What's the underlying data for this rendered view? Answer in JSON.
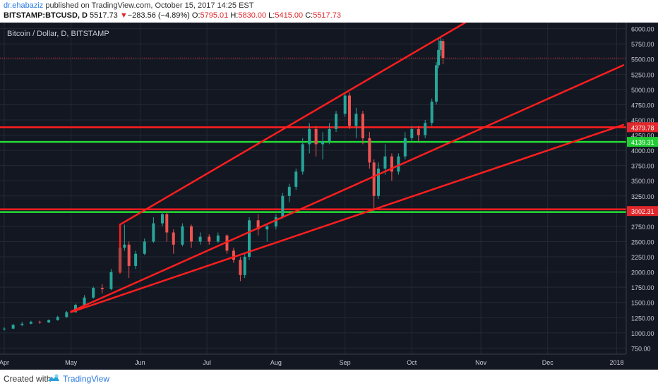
{
  "header": {
    "author": "dr.ehabaziz",
    "published_text": "published on TradingView.com, October 15, 2017 14:25 EST",
    "symbol": "BITSTAMP:BTCUSD, D",
    "last": "5517.73",
    "change_arrow": "▼",
    "change": "−283.56 (−4.89%)",
    "open_label": "O:",
    "open": "5795.01",
    "high_label": "H:",
    "high": "5830.00",
    "low_label": "L:",
    "low": "5415.00",
    "close_label": "C:",
    "close": "5517.73"
  },
  "footer": {
    "created_with": "Created with",
    "brand": "TradingView"
  },
  "chart_data": {
    "type": "candlestick",
    "title": "Bitcoin / Dollar, D, BITSTAMP",
    "x_ticks": [
      "Apr",
      "May",
      "Jun",
      "Jul",
      "Aug",
      "Sep",
      "Oct",
      "Nov",
      "Dec",
      "2018"
    ],
    "y_ticks": [
      750,
      1000,
      1250,
      1500,
      1750,
      2000,
      2250,
      2500,
      2750,
      3000,
      3250,
      3500,
      3750,
      4000,
      4250,
      4500,
      4750,
      5000,
      5250,
      5500,
      5750,
      6000
    ],
    "y_tick_labels": [
      "750.00",
      "1000.00",
      "1250.00",
      "1500.00",
      "1750.00",
      "2000.00",
      "2250.00",
      "2500.00",
      "2750.00",
      "3000.00",
      "3250.00",
      "3500.00",
      "3750.00",
      "4000.00",
      "4250.00",
      "4500.00",
      "4750.00",
      "5000.00",
      "5250.00",
      "5500.00",
      "5750.00",
      "6000.00"
    ],
    "ylim": [
      650,
      6100
    ],
    "x_range": [
      "2017-04-01",
      "2018-01-04"
    ],
    "price_labels": [
      {
        "value": 4379.78,
        "text": "4379.78",
        "color": "#e0272b"
      },
      {
        "value": 4139.31,
        "text": "4139.31",
        "color": "#22cc33"
      },
      {
        "value": 3002.31,
        "text": "3002.31",
        "color": "#e0272b"
      }
    ],
    "horizontal_lines": [
      {
        "value": 4379.78,
        "color": "#ff1e1e"
      },
      {
        "value": 4139.31,
        "color": "#22dd33"
      },
      {
        "value": 3030,
        "color": "#ff1e1e"
      },
      {
        "value": 2985,
        "color": "#22dd33"
      }
    ],
    "last_price_line": {
      "value": 5517.73,
      "color": "#e0272b"
    },
    "trend_lines": [
      {
        "from": [
          "2017-05-23",
          2780
        ],
        "to": [
          "2017-10-25",
          6100
        ],
        "color": "#ff1e1e"
      },
      {
        "from": [
          "2017-05-01",
          1350
        ],
        "to": [
          "2018-01-04",
          5400
        ],
        "color": "#ff1e1e"
      },
      {
        "from": [
          "2017-05-01",
          1340
        ],
        "to": [
          "2018-01-04",
          4420
        ],
        "color": "#ff1e1e"
      },
      {
        "from": [
          "2017-05-23",
          2780
        ],
        "to": [
          "2017-05-23",
          1990
        ],
        "color": "#ff1e1e"
      }
    ],
    "candles": [
      {
        "x": "2017-04-01",
        "o": 1060,
        "h": 1090,
        "l": 1040,
        "c": 1070
      },
      {
        "x": "2017-04-05",
        "o": 1070,
        "h": 1150,
        "l": 1060,
        "c": 1130
      },
      {
        "x": "2017-04-09",
        "o": 1130,
        "h": 1180,
        "l": 1110,
        "c": 1150
      },
      {
        "x": "2017-04-13",
        "o": 1150,
        "h": 1200,
        "l": 1140,
        "c": 1180
      },
      {
        "x": "2017-04-17",
        "o": 1180,
        "h": 1200,
        "l": 1150,
        "c": 1170
      },
      {
        "x": "2017-04-21",
        "o": 1170,
        "h": 1220,
        "l": 1160,
        "c": 1210
      },
      {
        "x": "2017-04-25",
        "o": 1210,
        "h": 1280,
        "l": 1200,
        "c": 1260
      },
      {
        "x": "2017-04-29",
        "o": 1260,
        "h": 1360,
        "l": 1250,
        "c": 1340
      },
      {
        "x": "2017-05-03",
        "o": 1340,
        "h": 1480,
        "l": 1330,
        "c": 1460
      },
      {
        "x": "2017-05-07",
        "o": 1460,
        "h": 1620,
        "l": 1430,
        "c": 1580
      },
      {
        "x": "2017-05-11",
        "o": 1580,
        "h": 1760,
        "l": 1560,
        "c": 1740
      },
      {
        "x": "2017-05-15",
        "o": 1740,
        "h": 1800,
        "l": 1650,
        "c": 1720
      },
      {
        "x": "2017-05-19",
        "o": 1720,
        "h": 2050,
        "l": 1700,
        "c": 2000
      },
      {
        "x": "2017-05-23",
        "o": 2000,
        "h": 2500,
        "l": 1980,
        "c": 2400
      },
      {
        "x": "2017-05-25",
        "o": 2400,
        "h": 2780,
        "l": 2350,
        "c": 2450
      },
      {
        "x": "2017-05-27",
        "o": 2450,
        "h": 2500,
        "l": 1900,
        "c": 2100
      },
      {
        "x": "2017-05-30",
        "o": 2100,
        "h": 2350,
        "l": 2050,
        "c": 2300
      },
      {
        "x": "2017-06-03",
        "o": 2300,
        "h": 2550,
        "l": 2280,
        "c": 2500
      },
      {
        "x": "2017-06-07",
        "o": 2500,
        "h": 2900,
        "l": 2480,
        "c": 2800
      },
      {
        "x": "2017-06-11",
        "o": 2800,
        "h": 3000,
        "l": 2750,
        "c": 2950
      },
      {
        "x": "2017-06-13",
        "o": 2950,
        "h": 2980,
        "l": 2500,
        "c": 2650
      },
      {
        "x": "2017-06-16",
        "o": 2650,
        "h": 2700,
        "l": 2300,
        "c": 2450
      },
      {
        "x": "2017-06-20",
        "o": 2450,
        "h": 2800,
        "l": 2420,
        "c": 2750
      },
      {
        "x": "2017-06-24",
        "o": 2750,
        "h": 2780,
        "l": 2400,
        "c": 2500
      },
      {
        "x": "2017-06-28",
        "o": 2500,
        "h": 2650,
        "l": 2450,
        "c": 2580
      },
      {
        "x": "2017-07-02",
        "o": 2580,
        "h": 2620,
        "l": 2450,
        "c": 2500
      },
      {
        "x": "2017-07-06",
        "o": 2500,
        "h": 2650,
        "l": 2480,
        "c": 2600
      },
      {
        "x": "2017-07-10",
        "o": 2600,
        "h": 2620,
        "l": 2300,
        "c": 2350
      },
      {
        "x": "2017-07-13",
        "o": 2350,
        "h": 2400,
        "l": 2150,
        "c": 2200
      },
      {
        "x": "2017-07-16",
        "o": 2200,
        "h": 2250,
        "l": 1850,
        "c": 1950
      },
      {
        "x": "2017-07-18",
        "o": 1950,
        "h": 2300,
        "l": 1900,
        "c": 2250
      },
      {
        "x": "2017-07-20",
        "o": 2250,
        "h": 2900,
        "l": 2200,
        "c": 2850
      },
      {
        "x": "2017-07-24",
        "o": 2850,
        "h": 2950,
        "l": 2600,
        "c": 2700
      },
      {
        "x": "2017-07-28",
        "o": 2700,
        "h": 2800,
        "l": 2500,
        "c": 2750
      },
      {
        "x": "2017-08-01",
        "o": 2750,
        "h": 2950,
        "l": 2700,
        "c": 2900
      },
      {
        "x": "2017-08-04",
        "o": 2900,
        "h": 3300,
        "l": 2880,
        "c": 3250
      },
      {
        "x": "2017-08-07",
        "o": 3250,
        "h": 3450,
        "l": 3150,
        "c": 3400
      },
      {
        "x": "2017-08-10",
        "o": 3400,
        "h": 3700,
        "l": 3350,
        "c": 3650
      },
      {
        "x": "2017-08-13",
        "o": 3650,
        "h": 4200,
        "l": 3600,
        "c": 4100
      },
      {
        "x": "2017-08-16",
        "o": 4100,
        "h": 4450,
        "l": 3950,
        "c": 4350
      },
      {
        "x": "2017-08-19",
        "o": 4350,
        "h": 4400,
        "l": 3900,
        "c": 4100
      },
      {
        "x": "2017-08-22",
        "o": 4100,
        "h": 4300,
        "l": 3850,
        "c": 4150
      },
      {
        "x": "2017-08-25",
        "o": 4150,
        "h": 4450,
        "l": 4100,
        "c": 4350
      },
      {
        "x": "2017-08-28",
        "o": 4350,
        "h": 4650,
        "l": 4300,
        "c": 4600
      },
      {
        "x": "2017-09-01",
        "o": 4600,
        "h": 4950,
        "l": 4550,
        "c": 4900
      },
      {
        "x": "2017-09-03",
        "o": 4900,
        "h": 4950,
        "l": 4350,
        "c": 4400
      },
      {
        "x": "2017-09-06",
        "o": 4400,
        "h": 4700,
        "l": 4200,
        "c": 4600
      },
      {
        "x": "2017-09-09",
        "o": 4600,
        "h": 4650,
        "l": 4100,
        "c": 4200
      },
      {
        "x": "2017-09-12",
        "o": 4200,
        "h": 4300,
        "l": 3700,
        "c": 3800
      },
      {
        "x": "2017-09-14",
        "o": 3800,
        "h": 3850,
        "l": 3000,
        "c": 3250
      },
      {
        "x": "2017-09-16",
        "o": 3250,
        "h": 3800,
        "l": 3200,
        "c": 3700
      },
      {
        "x": "2017-09-19",
        "o": 3700,
        "h": 4100,
        "l": 3600,
        "c": 3900
      },
      {
        "x": "2017-09-22",
        "o": 3900,
        "h": 3950,
        "l": 3500,
        "c": 3650
      },
      {
        "x": "2017-09-25",
        "o": 3650,
        "h": 3950,
        "l": 3600,
        "c": 3900
      },
      {
        "x": "2017-09-28",
        "o": 3900,
        "h": 4300,
        "l": 3850,
        "c": 4200
      },
      {
        "x": "2017-10-01",
        "o": 4200,
        "h": 4400,
        "l": 4150,
        "c": 4350
      },
      {
        "x": "2017-10-04",
        "o": 4350,
        "h": 4400,
        "l": 4150,
        "c": 4250
      },
      {
        "x": "2017-10-07",
        "o": 4250,
        "h": 4500,
        "l": 4200,
        "c": 4450
      },
      {
        "x": "2017-10-10",
        "o": 4450,
        "h": 4850,
        "l": 4400,
        "c": 4800
      },
      {
        "x": "2017-10-12",
        "o": 4800,
        "h": 5450,
        "l": 4750,
        "c": 5400
      },
      {
        "x": "2017-10-13",
        "o": 5400,
        "h": 5850,
        "l": 5350,
        "c": 5650
      },
      {
        "x": "2017-10-14",
        "o": 5650,
        "h": 5850,
        "l": 5550,
        "c": 5800
      },
      {
        "x": "2017-10-15",
        "o": 5795.01,
        "h": 5830,
        "l": 5415,
        "c": 5517.73
      }
    ],
    "colors": {
      "background": "#131722",
      "grid": "#242832",
      "up": "#26a69a",
      "down": "#ef5350",
      "axis_text": "#c9ccd3"
    }
  }
}
